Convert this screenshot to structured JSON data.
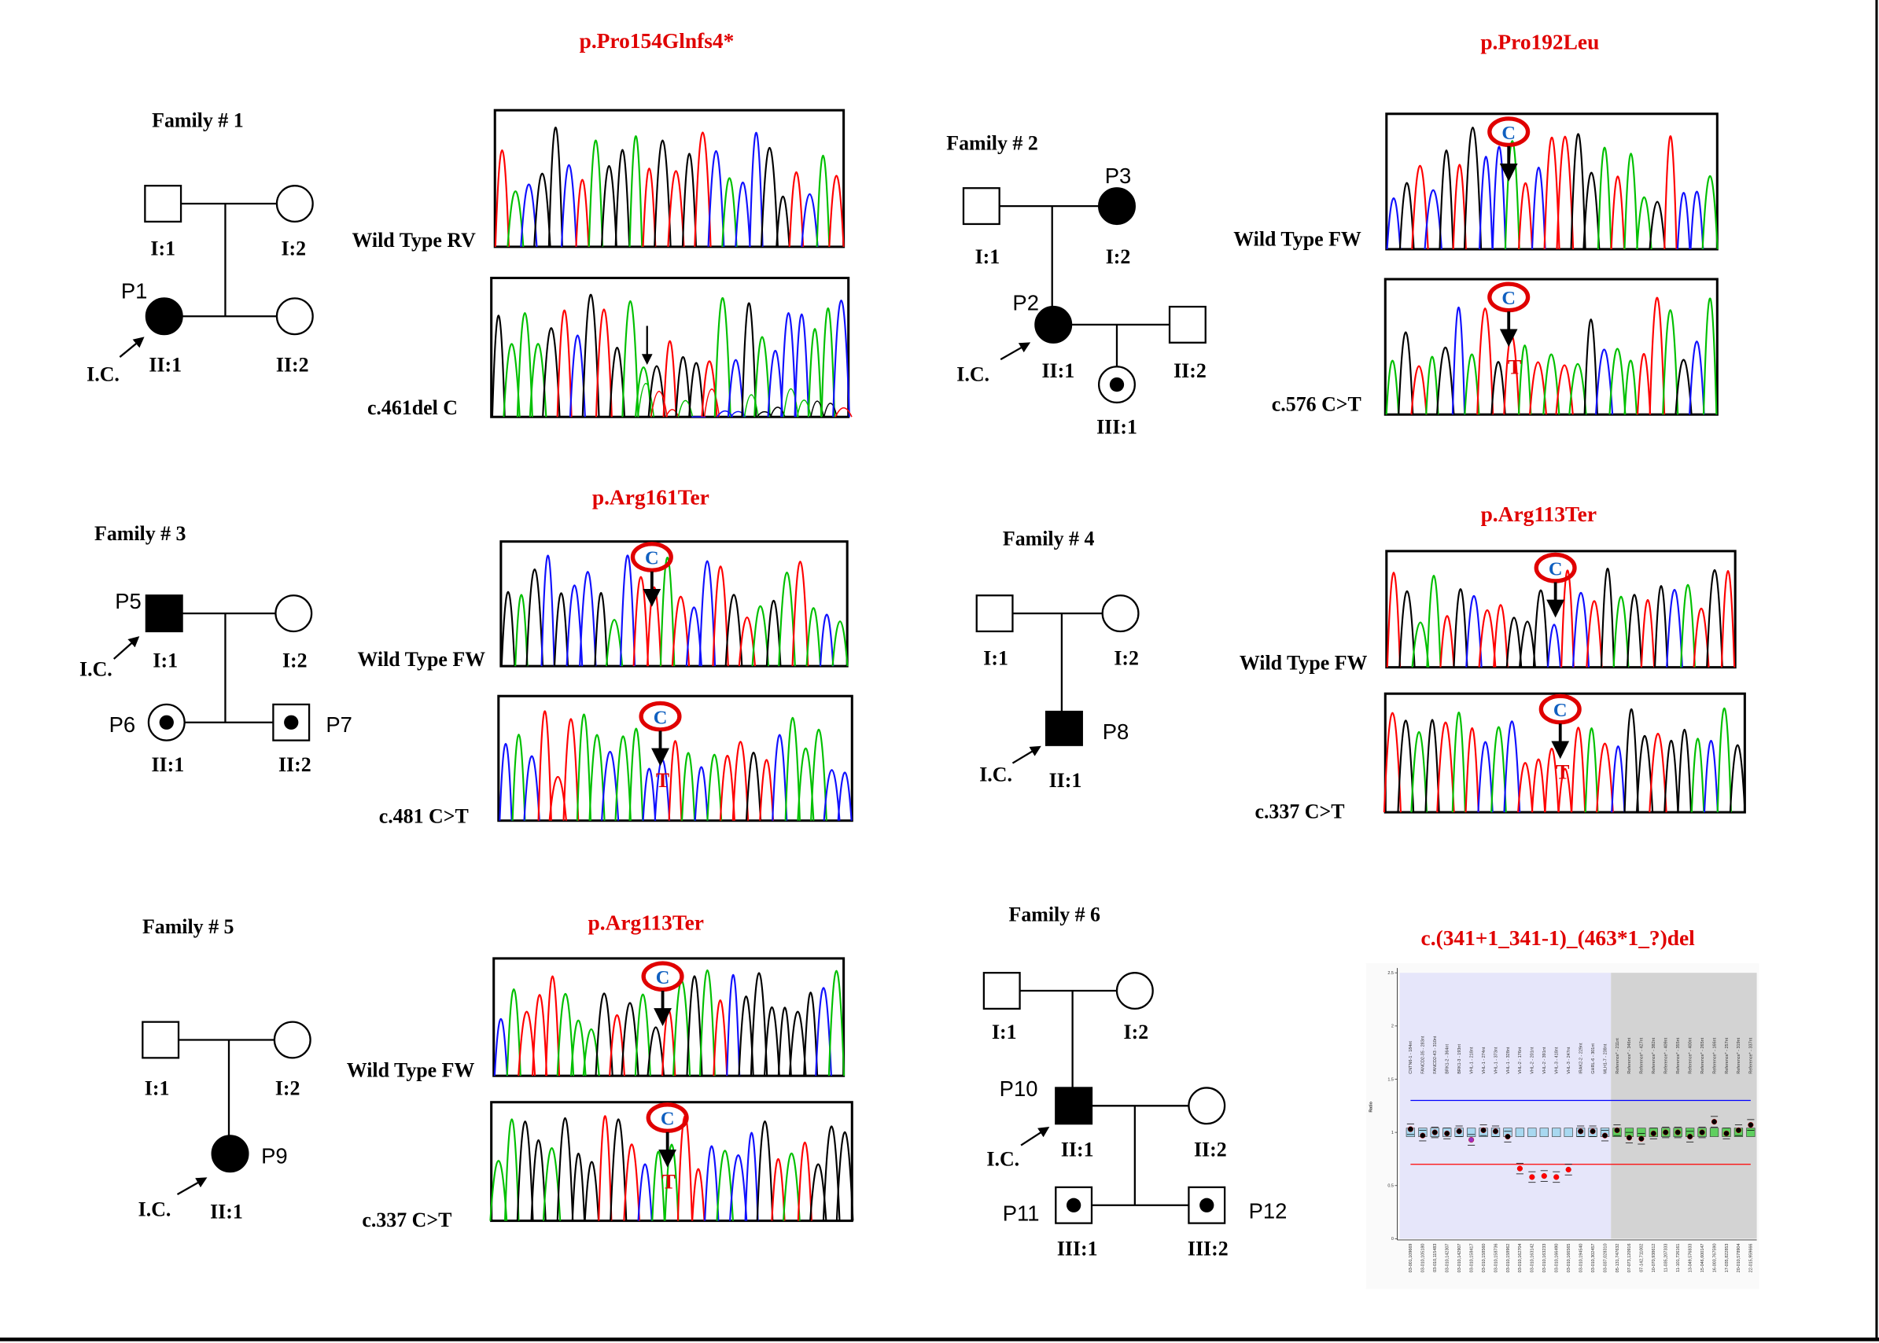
{
  "colors": {
    "mutation_text": "#e00000",
    "trace_A": "#00c000",
    "trace_C": "#1010ff",
    "trace_G": "#000000",
    "trace_T": "#ff0000",
    "wt_base": "#1060c0",
    "plot_bg_probe": "#e6e6fa",
    "plot_bg_ref": "#d3d3d3",
    "upper_threshold": "#0000ff",
    "lower_threshold": "#ff0000"
  },
  "icons": {
    "arrow": "arrow-icon",
    "highlight": "red-ellipse-icon"
  },
  "families": [
    {
      "title": "Family # 1",
      "mutation": "p.Pro154Glnfs4*",
      "wt_label": "Wild Type RV",
      "mut_label": "c.461del C",
      "members": {
        "I1": "I:1",
        "I2": "I:2",
        "II1": "II:1",
        "II2": "II:2"
      },
      "patients": [
        "P1"
      ],
      "ic": "I.C."
    },
    {
      "title": "Family # 2",
      "mutation": "p.Pro192Leu",
      "wt_label": "Wild Type FW",
      "mut_label": "c.576 C>T",
      "wt_base": "C",
      "mut_base": "T",
      "members": {
        "I1": "I:1",
        "I2": "I:2",
        "II1": "II:1",
        "II2": "II:2",
        "III1": "III:1"
      },
      "patients": [
        "P3",
        "P2"
      ],
      "ic": "I.C."
    },
    {
      "title": "Family # 3",
      "mutation": "p.Arg161Ter",
      "wt_label": "Wild Type FW",
      "mut_label": "c.481 C>T",
      "wt_base": "C",
      "mut_base": "T",
      "members": {
        "I1": "I:1",
        "I2": "I:2",
        "II1": "II:1",
        "II2": "II:2"
      },
      "patients": [
        "P5",
        "P6",
        "P7"
      ],
      "ic": "I.C."
    },
    {
      "title": "Family # 4",
      "mutation": "p.Arg113Ter",
      "wt_label": "Wild Type FW",
      "mut_label": "c.337 C>T",
      "wt_base": "C",
      "mut_base": "T",
      "members": {
        "I1": "I:1",
        "I2": "I:2",
        "II1": "II:1"
      },
      "patients": [
        "P8"
      ],
      "ic": "I.C."
    },
    {
      "title": "Family # 5",
      "mutation": "p.Arg113Ter",
      "wt_label": "Wild Type FW",
      "mut_label": "c.337 C>T",
      "wt_base": "C",
      "mut_base": "T",
      "members": {
        "I1": "I:1",
        "I2": "I:2",
        "II1": "II:1"
      },
      "patients": [
        "P9"
      ],
      "ic": "I.C."
    },
    {
      "title": "Family # 6",
      "mutation": "c.(341+1_341-1)_(463*1_?)del",
      "members": {
        "I1": "I:1",
        "I2": "I:2",
        "II1": "II:1",
        "II2": "II:2",
        "III1": "III:1",
        "III2": "III:2"
      },
      "patients": [
        "P10",
        "P11",
        "P12"
      ],
      "ic": "I.C."
    }
  ],
  "chart_data": {
    "type": "scatter",
    "title": "",
    "ylabel": "Ratio",
    "ylim": [
      0,
      2.5
    ],
    "yticks": [
      "0",
      "0.5",
      "1",
      "1.5",
      "2",
      "2.5"
    ],
    "thresholds": {
      "upper": 1.3,
      "lower": 0.7
    },
    "probes": [
      "CNTN6-1 - 184nt",
      "FANCD2-35 - 283nt",
      "FANCD2-43 - 310nt",
      "BRK1-2 - 364nt",
      "BRK1-3 - 193nt",
      "VHL-1 - 218nt",
      "VHL-1 - 274nt",
      "VHL-1 - 373nt",
      "VHL-1 - 328nt",
      "VHL-2 - 176nt",
      "VHL-2 - 201nt",
      "VHL-2 - 391nt",
      "VHL-3 - 418nt",
      "VHL-3 - 247nt",
      "IRAK2-2 - 229nt",
      "GHRL-6 - 301nt",
      "MLH1-7 - 238nt",
      "Reference* - 211nt",
      "Reference* - 346nt",
      "Reference* - 427nt",
      "Reference* - 382nt",
      "Reference* - 409nt",
      "Reference* - 355nt",
      "Reference* - 400nt",
      "Reference* - 265nt",
      "Reference* - 166nt",
      "Reference* - 257nt",
      "Reference* - 319nt",
      "Reference* - 337nt"
    ],
    "positions": [
      "03-001,109669",
      "03-010,105180",
      "03-010,115483",
      "03-010,142307",
      "03-010,142907",
      "03-010,158417",
      "03-010,158560",
      "03-010,158736",
      "03-010,158962",
      "03-010,162704",
      "03-010,163142",
      "03-010,163233",
      "03-010,166490",
      "03-010,166565",
      "03-010,194540",
      "03-010,302457",
      "03-037,028310",
      "05-131,747632",
      "07-073,120916",
      "07-142,711002",
      "10-070,938612",
      "11-035,207333",
      "11-101,726161",
      "13-049,576833",
      "15-046,600147",
      "16-003,767590",
      "17-035,822853",
      "20-010,578904",
      "22-015,959666"
    ],
    "values": [
      1.03,
      0.97,
      1.0,
      0.99,
      1.01,
      0.93,
      1.02,
      1.01,
      0.96,
      0.66,
      0.58,
      0.59,
      0.58,
      0.65,
      1.01,
      1.01,
      0.97,
      1.02,
      0.95,
      0.94,
      0.99,
      1.0,
      1.0,
      0.96,
      1.0,
      1.1,
      0.99,
      1.02,
      1.07
    ],
    "reference_start_index": 17
  }
}
